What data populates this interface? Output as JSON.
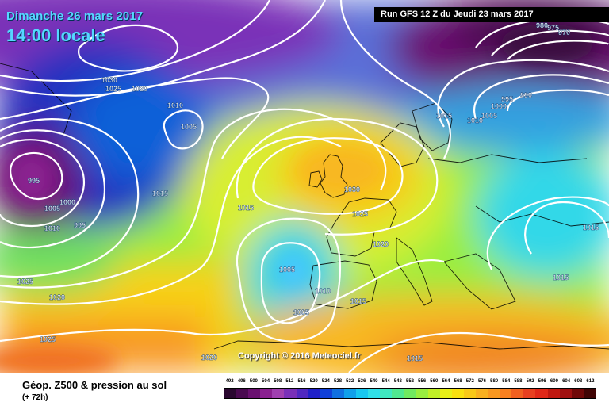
{
  "header": {
    "date": "Dimanche 26 mars 2017",
    "time": "14:00 locale",
    "run": "Run GFS 12 Z du Jeudi 23 mars 2017"
  },
  "copyright": "Copyright © 2016 Meteociel.fr",
  "footer": {
    "product": "Géop. Z500 & pression au sol",
    "lead": "(+ 72h)"
  },
  "isobar_labels": [
    "1030",
    "1025",
    "1020",
    "1010",
    "1005",
    "995",
    "1005",
    "1000",
    "1010",
    "995",
    "1015",
    "1025",
    "1020",
    "1025",
    "1030",
    "1025",
    "1020",
    "1005",
    "1010",
    "1005",
    "1015",
    "1020",
    "1015",
    "1015",
    "1010",
    "1005",
    "1000",
    "995",
    "990",
    "980",
    "975",
    "970",
    "1015",
    "1015",
    "1015"
  ],
  "color_scale": {
    "labels": [
      "492",
      "496",
      "500",
      "504",
      "508",
      "512",
      "516",
      "520",
      "524",
      "528",
      "532",
      "536",
      "540",
      "544",
      "548",
      "552",
      "556",
      "560",
      "564",
      "568",
      "572",
      "576",
      "580",
      "584",
      "588",
      "592",
      "596",
      "600",
      "604",
      "608",
      "612"
    ],
    "colors": [
      "#2a0830",
      "#4a0a50",
      "#6a1070",
      "#8a2090",
      "#a040b0",
      "#7a30b8",
      "#5028c0",
      "#2020c8",
      "#1040d8",
      "#1070e0",
      "#10a0ea",
      "#18c8f0",
      "#30e0e8",
      "#40e8c0",
      "#50e890",
      "#70ea60",
      "#98ee40",
      "#c0f028",
      "#e8f018",
      "#f8e010",
      "#f8c818",
      "#f8b020",
      "#f89820",
      "#f88020",
      "#f06020",
      "#e84020",
      "#e02818",
      "#c01810",
      "#a01010",
      "#700808",
      "#400404"
    ]
  }
}
